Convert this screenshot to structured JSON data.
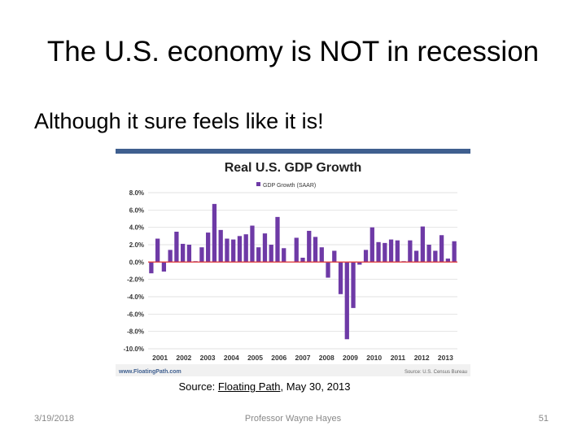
{
  "slide": {
    "title": "The U.S. economy is NOT in recession",
    "subtitle": "Although it sure feels like it is!",
    "caption_prefix": "Source: ",
    "caption_link": "Floating Path",
    "caption_suffix": ", May 30, 2013"
  },
  "footer": {
    "date": "3/19/2018",
    "author": "Professor Wayne Hayes",
    "page": "51"
  },
  "colors": {
    "bar": "#6e3aa6",
    "zero_line": "#e04040",
    "header_bar": "#3f5f8f",
    "grid": "#d8d8d8"
  },
  "chart_data": {
    "type": "bar",
    "title": "Real U.S. GDP Growth",
    "legend": [
      "GDP Growth (SAAR)"
    ],
    "legend_placement": "top-center",
    "grid": true,
    "ylim": [
      -10,
      8
    ],
    "y_ticks": [
      "8.0%",
      "6.0%",
      "4.0%",
      "2.0%",
      "0.0%",
      "-2.0%",
      "-4.0%",
      "-6.0%",
      "-8.0%",
      "-10.0%"
    ],
    "year_labels": [
      "2001",
      "2002",
      "2003",
      "2004",
      "2005",
      "2006",
      "2007",
      "2008",
      "2009",
      "2010",
      "2011",
      "2012",
      "2013"
    ],
    "values": [
      -1.3,
      2.7,
      -1.1,
      1.4,
      3.5,
      2.1,
      2.0,
      0.1,
      1.7,
      3.4,
      6.7,
      3.7,
      2.7,
      2.6,
      3.0,
      3.2,
      4.2,
      1.7,
      3.3,
      2.0,
      5.2,
      1.6,
      0.0,
      2.8,
      0.5,
      3.6,
      2.9,
      1.7,
      -1.8,
      1.3,
      -3.7,
      -8.9,
      -5.3,
      -0.3,
      1.4,
      4.0,
      2.3,
      2.2,
      2.6,
      2.5,
      0.1,
      2.5,
      1.3,
      4.1,
      2.0,
      1.3,
      3.1,
      0.4,
      2.4
    ],
    "source_left": "www.FloatingPath.com",
    "source_right": "Source: U.S. Census Bureau"
  }
}
